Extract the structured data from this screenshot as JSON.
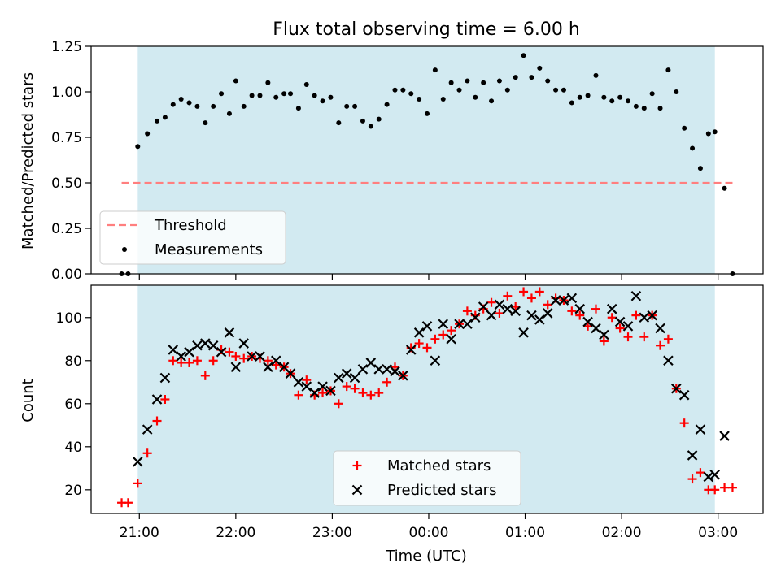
{
  "figure": {
    "title": "Flux total observing time = 6.00 h",
    "xlabel": "Time (UTC)"
  },
  "colors": {
    "shade": "#add8e6",
    "threshold": "#ff7f7f",
    "measurements": "#000000",
    "matched": "#ff0000",
    "predicted": "#000000"
  },
  "chart_data": [
    {
      "type": "scatter",
      "panel": "top",
      "ylabel": "Matched/Predicted stars",
      "xlim": [
        "20:30",
        "03:28"
      ],
      "ylim": [
        0,
        1.25
      ],
      "yticks": [
        "0.00",
        "0.25",
        "0.50",
        "0.75",
        "1.00",
        "1.25"
      ],
      "shaded_interval": [
        "20:59",
        "02:58"
      ],
      "legend": {
        "position": "lower-left",
        "entries": [
          "Threshold",
          "Measurements"
        ]
      },
      "threshold": {
        "name": "Threshold",
        "value": 0.5,
        "x_range": [
          "20:49",
          "03:09"
        ]
      },
      "series": [
        {
          "name": "Measurements",
          "points": [
            [
              "20:49",
              0.0
            ],
            [
              "20:53",
              0.0
            ],
            [
              "20:59",
              0.7
            ],
            [
              "21:05",
              0.77
            ],
            [
              "21:11",
              0.84
            ],
            [
              "21:16",
              0.86
            ],
            [
              "21:21",
              0.93
            ],
            [
              "21:26",
              0.96
            ],
            [
              "21:31",
              0.94
            ],
            [
              "21:36",
              0.92
            ],
            [
              "21:41",
              0.83
            ],
            [
              "21:46",
              0.92
            ],
            [
              "21:51",
              0.99
            ],
            [
              "21:56",
              0.88
            ],
            [
              "22:00",
              1.06
            ],
            [
              "22:05",
              0.92
            ],
            [
              "22:10",
              0.98
            ],
            [
              "22:15",
              0.98
            ],
            [
              "22:20",
              1.05
            ],
            [
              "22:25",
              0.97
            ],
            [
              "22:30",
              0.99
            ],
            [
              "22:34",
              0.99
            ],
            [
              "22:39",
              0.91
            ],
            [
              "22:44",
              1.04
            ],
            [
              "22:49",
              0.98
            ],
            [
              "22:54",
              0.95
            ],
            [
              "22:59",
              0.97
            ],
            [
              "23:04",
              0.83
            ],
            [
              "23:09",
              0.92
            ],
            [
              "23:14",
              0.92
            ],
            [
              "23:19",
              0.84
            ],
            [
              "23:24",
              0.81
            ],
            [
              "23:29",
              0.85
            ],
            [
              "23:34",
              0.93
            ],
            [
              "23:39",
              1.01
            ],
            [
              "23:44",
              1.01
            ],
            [
              "23:49",
              0.99
            ],
            [
              "23:54",
              0.96
            ],
            [
              "23:59",
              0.88
            ],
            [
              "00:04",
              1.12
            ],
            [
              "00:09",
              0.96
            ],
            [
              "00:14",
              1.05
            ],
            [
              "00:19",
              1.01
            ],
            [
              "00:24",
              1.06
            ],
            [
              "00:29",
              0.97
            ],
            [
              "00:34",
              1.05
            ],
            [
              "00:39",
              0.95
            ],
            [
              "00:44",
              1.06
            ],
            [
              "00:49",
              1.01
            ],
            [
              "00:54",
              1.08
            ],
            [
              "00:59",
              1.2
            ],
            [
              "01:04",
              1.08
            ],
            [
              "01:09",
              1.13
            ],
            [
              "01:14",
              1.06
            ],
            [
              "01:19",
              1.01
            ],
            [
              "01:24",
              1.01
            ],
            [
              "01:29",
              0.94
            ],
            [
              "01:34",
              0.97
            ],
            [
              "01:39",
              0.98
            ],
            [
              "01:44",
              1.09
            ],
            [
              "01:49",
              0.97
            ],
            [
              "01:54",
              0.95
            ],
            [
              "01:59",
              0.97
            ],
            [
              "02:04",
              0.95
            ],
            [
              "02:09",
              0.92
            ],
            [
              "02:14",
              0.91
            ],
            [
              "02:19",
              0.99
            ],
            [
              "02:24",
              0.91
            ],
            [
              "02:29",
              1.12
            ],
            [
              "02:34",
              1.0
            ],
            [
              "02:39",
              0.8
            ],
            [
              "02:44",
              0.69
            ],
            [
              "02:49",
              0.58
            ],
            [
              "02:54",
              0.77
            ],
            [
              "02:58",
              0.78
            ],
            [
              "03:04",
              0.47
            ],
            [
              "03:09",
              0.0
            ]
          ]
        }
      ]
    },
    {
      "type": "scatter",
      "panel": "bottom",
      "ylabel": "Count",
      "xlabel": "Time (UTC)",
      "xlim": [
        "20:30",
        "03:28"
      ],
      "ylim": [
        9,
        115
      ],
      "yticks": [
        "20",
        "40",
        "60",
        "80",
        "100"
      ],
      "xticks": [
        "21:00",
        "22:00",
        "23:00",
        "00:00",
        "01:00",
        "02:00",
        "03:00"
      ],
      "shaded_interval": [
        "20:59",
        "02:58"
      ],
      "legend": {
        "position": "bottom-center",
        "entries": [
          "Matched stars",
          "Predicted stars"
        ]
      },
      "series": [
        {
          "name": "Matched stars",
          "marker": "+",
          "points": [
            [
              "20:49",
              14
            ],
            [
              "20:53",
              14
            ],
            [
              "20:59",
              23
            ],
            [
              "21:05",
              37
            ],
            [
              "21:11",
              52
            ],
            [
              "21:16",
              62
            ],
            [
              "21:21",
              80
            ],
            [
              "21:26",
              79
            ],
            [
              "21:31",
              79
            ],
            [
              "21:36",
              80
            ],
            [
              "21:41",
              73
            ],
            [
              "21:46",
              80
            ],
            [
              "21:51",
              85
            ],
            [
              "21:56",
              84
            ],
            [
              "22:00",
              82
            ],
            [
              "22:05",
              81
            ],
            [
              "22:10",
              82
            ],
            [
              "22:15",
              81
            ],
            [
              "22:20",
              80
            ],
            [
              "22:25",
              78
            ],
            [
              "22:30",
              77
            ],
            [
              "22:34",
              74
            ],
            [
              "22:39",
              64
            ],
            [
              "22:44",
              71
            ],
            [
              "22:49",
              64
            ],
            [
              "22:54",
              65
            ],
            [
              "22:59",
              66
            ],
            [
              "23:04",
              60
            ],
            [
              "23:09",
              68
            ],
            [
              "23:14",
              67
            ],
            [
              "23:19",
              65
            ],
            [
              "23:24",
              64
            ],
            [
              "23:29",
              65
            ],
            [
              "23:34",
              70
            ],
            [
              "23:39",
              77
            ],
            [
              "23:44",
              73
            ],
            [
              "23:49",
              86
            ],
            [
              "23:54",
              88
            ],
            [
              "23:59",
              86
            ],
            [
              "00:04",
              90
            ],
            [
              "00:09",
              92
            ],
            [
              "00:14",
              94
            ],
            [
              "00:19",
              97
            ],
            [
              "00:24",
              103
            ],
            [
              "00:29",
              101
            ],
            [
              "00:34",
              104
            ],
            [
              "00:39",
              107
            ],
            [
              "00:44",
              102
            ],
            [
              "00:49",
              110
            ],
            [
              "00:54",
              105
            ],
            [
              "00:59",
              112
            ],
            [
              "01:04",
              109
            ],
            [
              "01:09",
              112
            ],
            [
              "01:14",
              106
            ],
            [
              "01:19",
              109
            ],
            [
              "01:24",
              108
            ],
            [
              "01:29",
              103
            ],
            [
              "01:34",
              101
            ],
            [
              "01:39",
              96
            ],
            [
              "01:44",
              104
            ],
            [
              "01:49",
              89
            ],
            [
              "01:54",
              100
            ],
            [
              "01:59",
              95
            ],
            [
              "02:04",
              91
            ],
            [
              "02:09",
              101
            ],
            [
              "02:14",
              91
            ],
            [
              "02:19",
              101
            ],
            [
              "02:24",
              87
            ],
            [
              "02:29",
              90
            ],
            [
              "02:34",
              67
            ],
            [
              "02:39",
              51
            ],
            [
              "02:44",
              25
            ],
            [
              "02:49",
              28
            ],
            [
              "02:54",
              20
            ],
            [
              "02:58",
              20
            ],
            [
              "03:04",
              21
            ],
            [
              "03:09",
              21
            ]
          ]
        },
        {
          "name": "Predicted stars",
          "marker": "x",
          "points": [
            [
              "20:59",
              33
            ],
            [
              "21:05",
              48
            ],
            [
              "21:11",
              62
            ],
            [
              "21:16",
              72
            ],
            [
              "21:21",
              85
            ],
            [
              "21:26",
              82
            ],
            [
              "21:31",
              84
            ],
            [
              "21:36",
              87
            ],
            [
              "21:41",
              88
            ],
            [
              "21:46",
              87
            ],
            [
              "21:51",
              84
            ],
            [
              "21:56",
              93
            ],
            [
              "22:00",
              77
            ],
            [
              "22:05",
              88
            ],
            [
              "22:10",
              82
            ],
            [
              "22:15",
              82
            ],
            [
              "22:20",
              77
            ],
            [
              "22:25",
              80
            ],
            [
              "22:30",
              77
            ],
            [
              "22:34",
              74
            ],
            [
              "22:39",
              70
            ],
            [
              "22:44",
              68
            ],
            [
              "22:49",
              65
            ],
            [
              "22:54",
              68
            ],
            [
              "22:59",
              66
            ],
            [
              "23:04",
              72
            ],
            [
              "23:09",
              74
            ],
            [
              "23:14",
              72
            ],
            [
              "23:19",
              76
            ],
            [
              "23:24",
              79
            ],
            [
              "23:29",
              76
            ],
            [
              "23:34",
              76
            ],
            [
              "23:39",
              75
            ],
            [
              "23:44",
              73
            ],
            [
              "23:49",
              85
            ],
            [
              "23:54",
              93
            ],
            [
              "23:59",
              96
            ],
            [
              "00:04",
              80
            ],
            [
              "00:09",
              97
            ],
            [
              "00:14",
              90
            ],
            [
              "00:19",
              97
            ],
            [
              "00:24",
              97
            ],
            [
              "00:29",
              100
            ],
            [
              "00:34",
              105
            ],
            [
              "00:39",
              101
            ],
            [
              "00:44",
              106
            ],
            [
              "00:49",
              104
            ],
            [
              "00:54",
              103
            ],
            [
              "00:59",
              93
            ],
            [
              "01:04",
              101
            ],
            [
              "01:09",
              99
            ],
            [
              "01:14",
              102
            ],
            [
              "01:19",
              108
            ],
            [
              "01:24",
              108
            ],
            [
              "01:29",
              109
            ],
            [
              "01:34",
              104
            ],
            [
              "01:39",
              98
            ],
            [
              "01:44",
              95
            ],
            [
              "01:49",
              92
            ],
            [
              "01:54",
              104
            ],
            [
              "01:59",
              98
            ],
            [
              "02:04",
              96
            ],
            [
              "02:09",
              110
            ],
            [
              "02:14",
              100
            ],
            [
              "02:19",
              101
            ],
            [
              "02:24",
              95
            ],
            [
              "02:29",
              80
            ],
            [
              "02:34",
              67
            ],
            [
              "02:39",
              64
            ],
            [
              "02:44",
              36
            ],
            [
              "02:49",
              48
            ],
            [
              "02:54",
              26
            ],
            [
              "02:58",
              27
            ],
            [
              "03:04",
              45
            ]
          ]
        }
      ]
    }
  ]
}
